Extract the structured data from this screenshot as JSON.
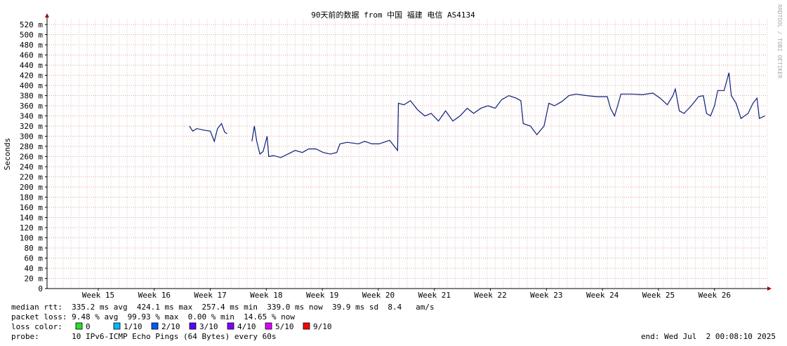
{
  "chart_data": {
    "type": "line",
    "title": "90天前的数据 from 中国 福建 电信 AS4134",
    "y_label": "Seconds",
    "watermark": "RRDTOOL / TOBI OETIKER",
    "xlim": [
      0,
      90
    ],
    "xticks": [
      {
        "value": 6.4,
        "label": "Week 15"
      },
      {
        "value": 13.4,
        "label": "Week 16"
      },
      {
        "value": 20.4,
        "label": "Week 17"
      },
      {
        "value": 27.4,
        "label": "Week 18"
      },
      {
        "value": 34.4,
        "label": "Week 19"
      },
      {
        "value": 41.4,
        "label": "Week 20"
      },
      {
        "value": 48.4,
        "label": "Week 21"
      },
      {
        "value": 55.4,
        "label": "Week 22"
      },
      {
        "value": 62.4,
        "label": "Week 23"
      },
      {
        "value": 69.4,
        "label": "Week 24"
      },
      {
        "value": 76.4,
        "label": "Week 25"
      },
      {
        "value": 83.4,
        "label": "Week 26"
      }
    ],
    "ylim": [
      0,
      530
    ],
    "yticks": [
      0,
      {
        "value": 20,
        "label": "20 m"
      },
      {
        "value": 40,
        "label": "40 m"
      },
      {
        "value": 60,
        "label": "60 m"
      },
      {
        "value": 80,
        "label": "80 m"
      },
      {
        "value": 100,
        "label": "100 m"
      },
      {
        "value": 120,
        "label": "120 m"
      },
      {
        "value": 140,
        "label": "140 m"
      },
      {
        "value": 160,
        "label": "160 m"
      },
      {
        "value": 180,
        "label": "180 m"
      },
      {
        "value": 200,
        "label": "200 m"
      },
      {
        "value": 220,
        "label": "220 m"
      },
      {
        "value": 240,
        "label": "240 m"
      },
      {
        "value": 260,
        "label": "260 m"
      },
      {
        "value": 280,
        "label": "280 m"
      },
      {
        "value": 300,
        "label": "300 m"
      },
      {
        "value": 320,
        "label": "320 m"
      },
      {
        "value": 340,
        "label": "340 m"
      },
      {
        "value": 360,
        "label": "360 m"
      },
      {
        "value": 380,
        "label": "380 m"
      },
      {
        "value": 400,
        "label": "400 m"
      },
      {
        "value": 420,
        "label": "420 m"
      },
      {
        "value": 440,
        "label": "440 m"
      },
      {
        "value": 460,
        "label": "460 m"
      },
      {
        "value": 480,
        "label": "480 m"
      },
      {
        "value": 500,
        "label": "500 m"
      },
      {
        "value": 520,
        "label": "520 m"
      }
    ],
    "grid": true,
    "x": [
      17.8,
      18.2,
      18.7,
      19.6,
      20.4,
      20.9,
      21.3,
      21.8,
      22.2,
      22.5,
      24.0,
      25.6,
      25.9,
      26.2,
      26.6,
      27.0,
      27.5,
      27.7,
      28.3,
      29.2,
      30.1,
      31.0,
      31.9,
      32.7,
      33.6,
      34.5,
      35.4,
      36.2,
      36.6,
      37.5,
      38.9,
      39.7,
      40.6,
      41.5,
      42.8,
      43.4,
      43.8,
      43.9,
      44.6,
      45.4,
      46.3,
      47.2,
      48.0,
      48.9,
      49.8,
      50.7,
      51.6,
      52.5,
      53.3,
      54.2,
      55.1,
      56.0,
      56.8,
      57.7,
      58.6,
      59.2,
      59.5,
      60.4,
      61.2,
      62.1,
      62.7,
      63.4,
      64.3,
      65.2,
      66.1,
      67.4,
      68.7,
      70.0,
      70.4,
      70.9,
      71.3,
      71.7,
      73.1,
      74.4,
      75.7,
      76.6,
      77.5,
      78.2,
      78.5,
      79.0,
      79.6,
      80.5,
      81.4,
      82.0,
      82.4,
      82.9,
      83.4,
      83.8,
      84.6,
      85.2,
      85.5,
      86.1,
      86.7,
      87.6,
      88.2,
      88.7,
      89.0,
      89.7
    ],
    "series": [
      {
        "name": "median rtt",
        "color": "#0b1f7a",
        "values": [
          320,
          310,
          315,
          312,
          310,
          290,
          315,
          325,
          308,
          305,
          null,
          290,
          320,
          290,
          265,
          270,
          300,
          260,
          262,
          258,
          265,
          272,
          268,
          275,
          275,
          268,
          265,
          268,
          285,
          288,
          285,
          290,
          285,
          285,
          292,
          280,
          272,
          365,
          362,
          370,
          352,
          340,
          345,
          330,
          350,
          330,
          340,
          355,
          345,
          355,
          360,
          355,
          372,
          380,
          375,
          370,
          325,
          320,
          303,
          320,
          365,
          360,
          368,
          380,
          383,
          380,
          378,
          378,
          355,
          340,
          360,
          383,
          383,
          382,
          385,
          375,
          362,
          380,
          393,
          350,
          345,
          360,
          378,
          380,
          345,
          340,
          360,
          390,
          390,
          425,
          380,
          365,
          335,
          345,
          365,
          375,
          335,
          340
        ]
      }
    ],
    "stats_lines": [
      "median rtt:  335.2 ms avg  424.1 ms max  257.4 ms min  339.0 ms now  39.9 ms sd  8.4   am/s",
      "packet loss: 9.48 % avg  99.93 % max  0.00 % min  14.65 % now"
    ],
    "loss_label": "loss color:",
    "loss_colors": [
      {
        "name": "0",
        "color": "#26e026"
      },
      {
        "name": "1/10",
        "color": "#00b8ff"
      },
      {
        "name": "2/10",
        "color": "#0059ff"
      },
      {
        "name": "3/10",
        "color": "#5e00ff"
      },
      {
        "name": "4/10",
        "color": "#7e00ff"
      },
      {
        "name": "5/10",
        "color": "#dd00ff"
      },
      {
        "name": "9/10",
        "color": "#ff0000"
      }
    ],
    "probe_line": "probe:       10 IPv6-ICMP Echo Pings (64 Bytes) every 60s",
    "end_line": "end: Wed Jul  2 00:08:10 2025"
  }
}
